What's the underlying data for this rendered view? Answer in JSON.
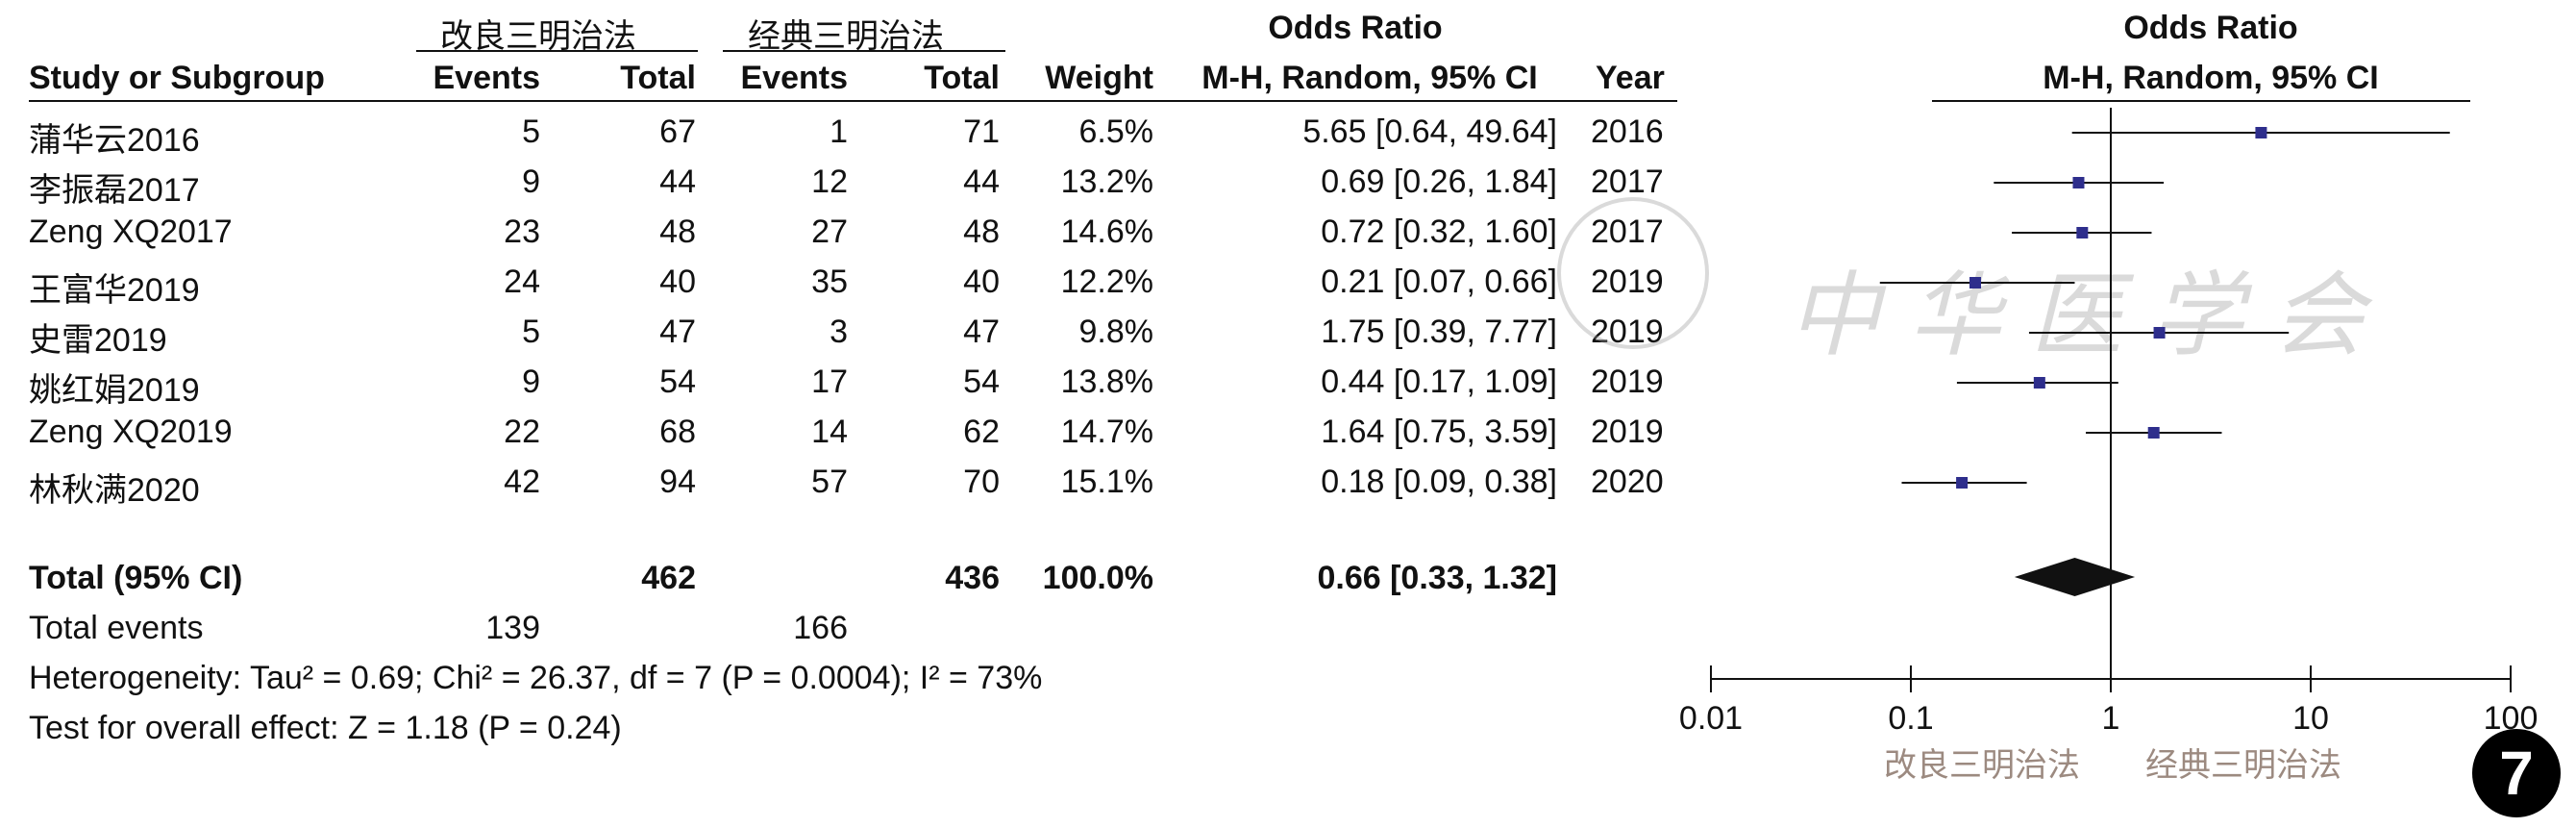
{
  "chart_data": {
    "type": "forest",
    "group1_name": "改良三明治法",
    "group2_name": "经典三明治法",
    "columns": {
      "study": "Study or Subgroup",
      "events1": "Events",
      "total1": "Total",
      "events2": "Events",
      "total2": "Total",
      "weight": "Weight",
      "or_title": "Odds Ratio",
      "or_method": "M-H, Random, 95% CI",
      "year": "Year"
    },
    "plot_header": {
      "title": "Odds Ratio",
      "method": "M-H, Random, 95% CI"
    },
    "studies": [
      {
        "name": "蒲华云2016",
        "e1": "5",
        "n1": "67",
        "e2": "1",
        "n2": "71",
        "weight": "6.5%",
        "ci_text": "5.65 [0.64, 49.64]",
        "year": "2016",
        "or": 5.65,
        "lo": 0.64,
        "hi": 49.64
      },
      {
        "name": "李振磊2017",
        "e1": "9",
        "n1": "44",
        "e2": "12",
        "n2": "44",
        "weight": "13.2%",
        "ci_text": "0.69 [0.26, 1.84]",
        "year": "2017",
        "or": 0.69,
        "lo": 0.26,
        "hi": 1.84
      },
      {
        "name": "Zeng XQ2017",
        "e1": "23",
        "n1": "48",
        "e2": "27",
        "n2": "48",
        "weight": "14.6%",
        "ci_text": "0.72 [0.32, 1.60]",
        "year": "2017",
        "or": 0.72,
        "lo": 0.32,
        "hi": 1.6
      },
      {
        "name": "王富华2019",
        "e1": "24",
        "n1": "40",
        "e2": "35",
        "n2": "40",
        "weight": "12.2%",
        "ci_text": "0.21 [0.07, 0.66]",
        "year": "2019",
        "or": 0.21,
        "lo": 0.07,
        "hi": 0.66
      },
      {
        "name": "史雷2019",
        "e1": "5",
        "n1": "47",
        "e2": "3",
        "n2": "47",
        "weight": "9.8%",
        "ci_text": "1.75 [0.39, 7.77]",
        "year": "2019",
        "or": 1.75,
        "lo": 0.39,
        "hi": 7.77
      },
      {
        "name": "姚红娟2019",
        "e1": "9",
        "n1": "54",
        "e2": "17",
        "n2": "54",
        "weight": "13.8%",
        "ci_text": "0.44 [0.17, 1.09]",
        "year": "2019",
        "or": 0.44,
        "lo": 0.17,
        "hi": 1.09
      },
      {
        "name": "Zeng XQ2019",
        "e1": "22",
        "n1": "68",
        "e2": "14",
        "n2": "62",
        "weight": "14.7%",
        "ci_text": "1.64 [0.75, 3.59]",
        "year": "2019",
        "or": 1.64,
        "lo": 0.75,
        "hi": 3.59
      },
      {
        "name": "林秋满2020",
        "e1": "42",
        "n1": "94",
        "e2": "57",
        "n2": "70",
        "weight": "15.1%",
        "ci_text": "0.18 [0.09, 0.38]",
        "year": "2020",
        "or": 0.18,
        "lo": 0.09,
        "hi": 0.38
      }
    ],
    "total": {
      "label": "Total (95% CI)",
      "n1": "462",
      "n2": "436",
      "weight": "100.0%",
      "ci_text": "0.66 [0.33, 1.32]",
      "or": 0.66,
      "lo": 0.33,
      "hi": 1.32
    },
    "total_events": {
      "label": "Total events",
      "e1": "139",
      "e2": "166"
    },
    "heterogeneity": "Heterogeneity: Tau² = 0.69; Chi² = 26.37, df = 7 (P = 0.0004); I² = 73%",
    "overall_effect": "Test for overall effect: Z = 1.18 (P = 0.24)",
    "x_axis": {
      "scale": "log",
      "ticks": [
        "0.01",
        "0.1",
        "1",
        "10",
        "100"
      ],
      "tick_values": [
        0.01,
        0.1,
        1,
        10,
        100
      ]
    },
    "favours": {
      "left": "改良三明治法",
      "right": "经典三明治法"
    },
    "colors": {
      "marker": "#2e2e8c",
      "line": "#111111",
      "diamond": "#111111"
    }
  },
  "watermark": "中华医学会",
  "badge": "7"
}
